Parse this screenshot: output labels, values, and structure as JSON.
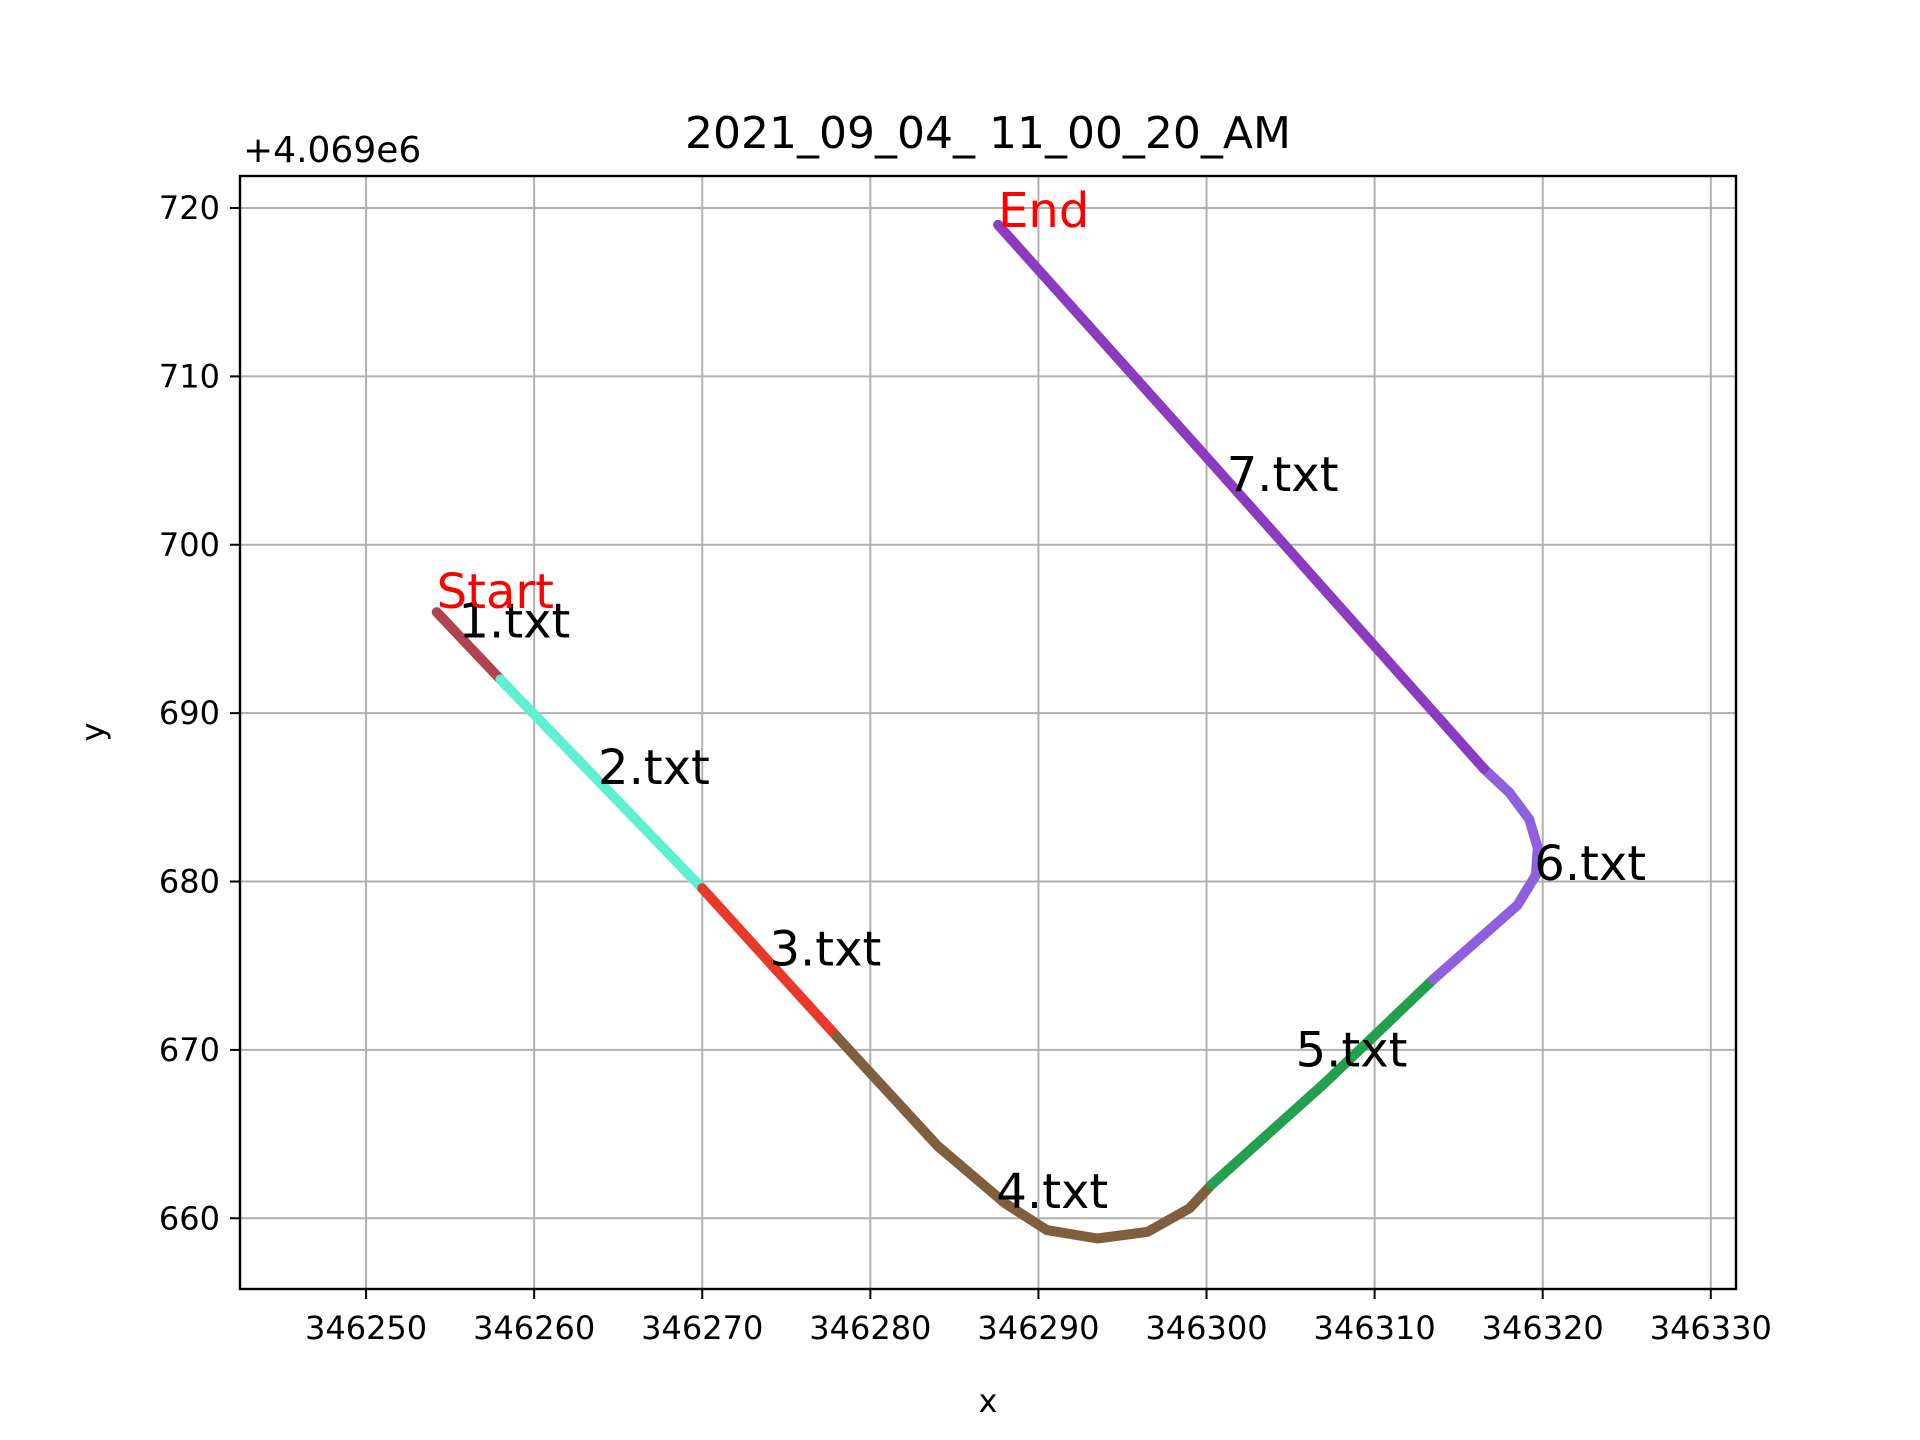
{
  "chart_data": {
    "type": "line",
    "title": "2021_09_04_ 11_00_20_AM",
    "xlabel": "x",
    "ylabel": "y",
    "y_offset_label": "+4.069e6",
    "xlim": [
      346242.5,
      346331.5
    ],
    "ylim": [
      655.8,
      721.9
    ],
    "x_ticks": [
      346250,
      346260,
      346270,
      346280,
      346290,
      346300,
      346310,
      346320,
      346330
    ],
    "y_ticks": [
      660,
      670,
      680,
      690,
      700,
      710,
      720
    ],
    "grid": true,
    "start_label": {
      "text": "Start",
      "x": 346254.2,
      "y": 696,
      "color": "#ff0000"
    },
    "end_label": {
      "text": "End",
      "x": 346287.6,
      "y": 719,
      "color": "#ff0000"
    },
    "series": [
      {
        "name": "1.txt",
        "color": "#b0434e",
        "label_at": [
          346255.5,
          694.5
        ],
        "x": [
          346254.2,
          346258.0
        ],
        "y": [
          696.0,
          692.0
        ]
      },
      {
        "name": "2.txt",
        "color": "#5ff0d2",
        "label_at": [
          346263.8,
          685.8
        ],
        "x": [
          346258.0,
          346270.0
        ],
        "y": [
          692.0,
          679.6
        ]
      },
      {
        "name": "3.txt",
        "color": "#e8392a",
        "label_at": [
          346274.0,
          675.0
        ],
        "x": [
          346270.0,
          346278.0
        ],
        "y": [
          679.6,
          670.8
        ]
      },
      {
        "name": "4.txt",
        "color": "#7f5f3e",
        "label_at": [
          346287.5,
          660.6
        ],
        "x": [
          346278.0,
          346284.0,
          346288.0,
          346290.5,
          346293.5,
          346296.5,
          346299.0,
          346300.3
        ],
        "y": [
          670.8,
          664.3,
          660.9,
          659.3,
          658.8,
          659.2,
          660.6,
          662.0
        ]
      },
      {
        "name": "5.txt",
        "color": "#22a04e",
        "label_at": [
          346305.3,
          669.0
        ],
        "x": [
          346300.3,
          346307.0,
          346313.5
        ],
        "y": [
          662.0,
          668.0,
          674.2
        ]
      },
      {
        "name": "6.txt",
        "color": "#8e60e0",
        "label_at": [
          346319.5,
          680.1
        ],
        "x": [
          346313.5,
          346318.5,
          346319.6,
          346319.7,
          346319.2,
          346318.0,
          346316.5
        ],
        "y": [
          674.2,
          678.6,
          680.4,
          682.0,
          683.7,
          685.3,
          686.7
        ]
      },
      {
        "name": "7.txt",
        "color": "#8a3bbf",
        "label_at": [
          346301.2,
          703.2
        ],
        "x": [
          346316.5,
          346300.0,
          346287.6
        ],
        "y": [
          686.7,
          705.2,
          719.0
        ]
      }
    ]
  }
}
